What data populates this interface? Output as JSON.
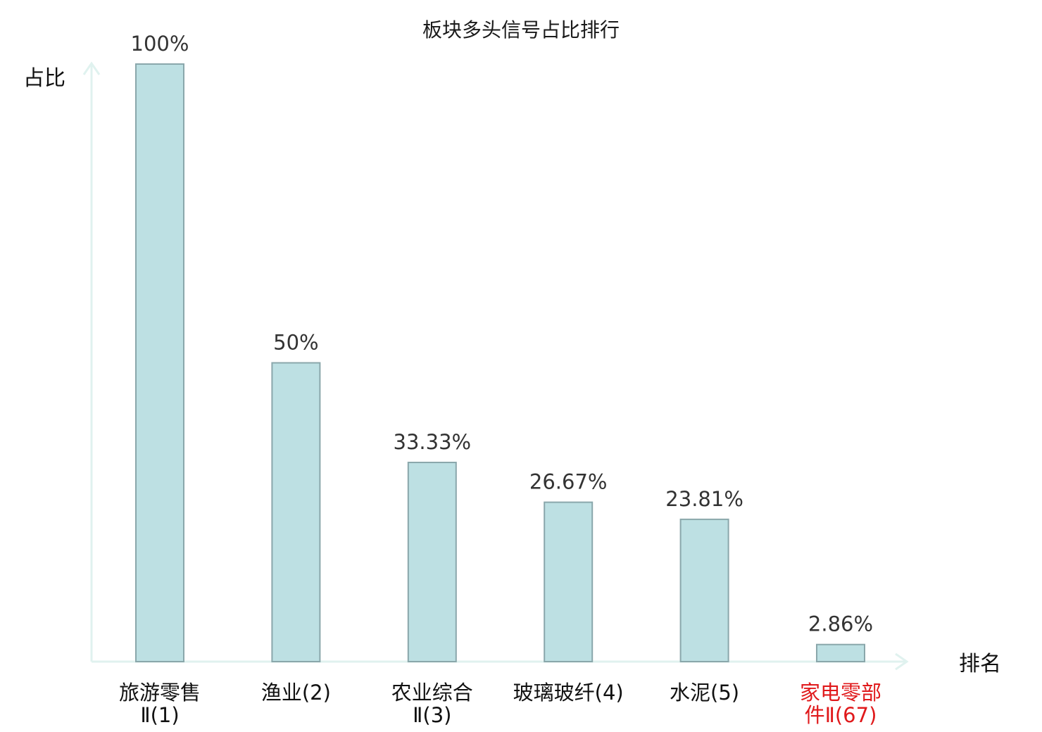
{
  "chart_data": {
    "type": "bar",
    "title": "板块多头信号占比排行",
    "ylabel": "占比",
    "xlabel": "排名",
    "ylim": [
      0,
      100
    ],
    "grid": false,
    "categories": [
      {
        "lines": [
          "旅游零售",
          "Ⅱ(1)"
        ],
        "highlight": false
      },
      {
        "lines": [
          "渔业(2)"
        ],
        "highlight": false
      },
      {
        "lines": [
          "农业综合",
          "Ⅱ(3)"
        ],
        "highlight": false
      },
      {
        "lines": [
          "玻璃玻纤(4)"
        ],
        "highlight": false
      },
      {
        "lines": [
          "水泥(5)"
        ],
        "highlight": false
      },
      {
        "lines": [
          "家电零部",
          "件Ⅱ(67)"
        ],
        "highlight": true
      }
    ],
    "values": [
      100,
      50,
      33.33,
      26.67,
      23.81,
      2.86
    ],
    "value_labels": [
      "100%",
      "50%",
      "33.33%",
      "26.67%",
      "23.81%",
      "2.86%"
    ]
  },
  "colors": {
    "bar_fill": "#bde0e3",
    "bar_stroke": "#8aa7ab",
    "axis": "#e0f2ef",
    "label_default": "#111111",
    "label_highlight": "#e0191b",
    "value_text": "#333333"
  }
}
